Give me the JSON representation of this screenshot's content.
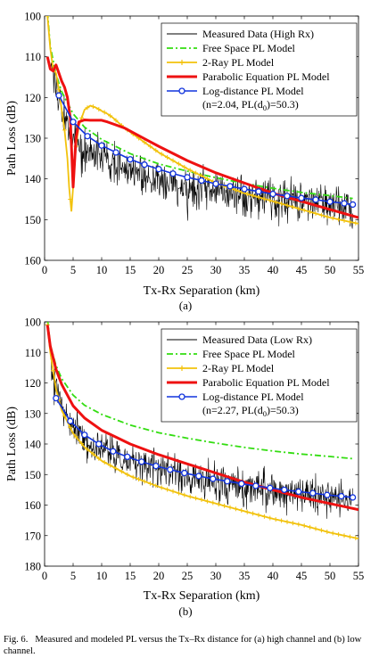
{
  "figure": {
    "caption_label": "Fig. 6.",
    "caption_text": "Measured and modeled PL versus the Tx–Rx distance for (a) high channel and (b) low channel."
  },
  "chart_data": [
    {
      "type": "line",
      "panel_label": "(a)",
      "xlabel": "Tx-Rx Separation (km)",
      "ylabel": "Path Loss (dB)",
      "xlim": [
        0,
        55
      ],
      "ylim": [
        160,
        100
      ],
      "y_reversed": true,
      "xticks": [
        0,
        5,
        10,
        15,
        20,
        25,
        30,
        35,
        40,
        45,
        50,
        55
      ],
      "yticks": [
        100,
        110,
        120,
        130,
        140,
        150,
        160
      ],
      "grid": false,
      "legend_position": "top-right",
      "series": [
        {
          "name": "Measured Data (High Rx)",
          "style": "thin-noisy",
          "color": "#000000",
          "x": [
            1,
            2,
            3,
            4,
            5,
            6,
            8,
            10,
            12,
            15,
            18,
            20,
            22,
            25,
            28,
            30,
            32,
            35,
            38,
            40,
            42,
            45,
            48,
            50,
            52,
            54
          ],
          "y": [
            112,
            118,
            124,
            127,
            129,
            131,
            133,
            134,
            136,
            138,
            139,
            140,
            141,
            142,
            142.5,
            143,
            143.5,
            144,
            144.5,
            145,
            145,
            145.5,
            146,
            146.5,
            147,
            147.5
          ],
          "spread": 9
        },
        {
          "name": "Free Space PL Model",
          "style": "dash-dot",
          "color": "#33dd11",
          "x": [
            0.5,
            1,
            2,
            3,
            5,
            7,
            10,
            15,
            20,
            25,
            30,
            35,
            40,
            45,
            50,
            54
          ],
          "y": [
            99,
            107.5,
            114.3,
            118.6,
            124,
            127.3,
            130.3,
            133.8,
            136.3,
            138.1,
            139.7,
            141.1,
            142.3,
            143.3,
            144.1,
            144.8
          ]
        },
        {
          "name": "2-Ray PL Model",
          "style": "line-plus",
          "color": "#f2c20c",
          "x": [
            0.5,
            1,
            1.5,
            2,
            2.5,
            3,
            3.5,
            4,
            4.3,
            4.7,
            5,
            5.5,
            6,
            7,
            8,
            9,
            10,
            11,
            12,
            14,
            16,
            18,
            20,
            25,
            30,
            35,
            40,
            45,
            50,
            55
          ],
          "y": [
            100,
            108,
            113,
            114,
            118,
            123,
            128,
            135,
            142,
            148,
            142,
            132,
            127,
            123,
            122,
            122.5,
            123.3,
            124,
            125,
            127.5,
            129.5,
            131.5,
            133.5,
            137.5,
            141,
            143.5,
            145.5,
            147.5,
            149.5,
            151
          ]
        },
        {
          "name": "Parabolic Equation PL Model",
          "style": "thick",
          "color": "#ee1111",
          "x": [
            0.5,
            1,
            1.5,
            2,
            2.5,
            3,
            3.5,
            4,
            4.5,
            5,
            5.5,
            6,
            7,
            8,
            9,
            10,
            11,
            12,
            14,
            16,
            18,
            20,
            25,
            30,
            35,
            40,
            45,
            50,
            55
          ],
          "y": [
            110,
            113,
            113.5,
            112,
            114,
            116,
            117.5,
            120,
            125,
            142,
            130,
            126,
            125.5,
            125.6,
            125.6,
            125.6,
            126,
            126.5,
            127.5,
            129,
            130.5,
            132,
            135.5,
            138.5,
            141,
            143.5,
            145.5,
            147.5,
            149.5
          ]
        },
        {
          "name": "Log-distance PL Model",
          "name_line2_prefix": "(n=2.04, PL(d",
          "name_line2_sub": "0",
          "name_line2_suffix": ")=50.3)",
          "style": "line-circle",
          "color": "#1133dd",
          "x": [
            2.5,
            5,
            7.5,
            10,
            12.5,
            15,
            17.5,
            20,
            22.5,
            25,
            27.5,
            30,
            32.5,
            35,
            37.5,
            40,
            42.5,
            45,
            47.5,
            50,
            52.5,
            54
          ],
          "y": [
            119.5,
            126,
            129.5,
            131.8,
            133.5,
            135.2,
            136.5,
            137.6,
            138.7,
            139.6,
            140.4,
            141.2,
            141.8,
            142.5,
            143.1,
            143.7,
            144.2,
            144.7,
            145.1,
            145.6,
            146,
            146.3
          ]
        }
      ]
    },
    {
      "type": "line",
      "panel_label": "(b)",
      "xlabel": "Tx-Rx Separation (km)",
      "ylabel": "Path Loss (dB)",
      "xlim": [
        0,
        55
      ],
      "ylim": [
        180,
        100
      ],
      "y_reversed": true,
      "xticks": [
        0,
        5,
        10,
        15,
        20,
        25,
        30,
        35,
        40,
        45,
        50,
        55
      ],
      "yticks": [
        100,
        110,
        120,
        130,
        140,
        150,
        160,
        170,
        180
      ],
      "grid": false,
      "legend_position": "top-right",
      "series": [
        {
          "name": "Measured Data (Low Rx)",
          "style": "thin-noisy",
          "color": "#000000",
          "x": [
            1,
            2,
            3,
            4,
            5,
            6,
            8,
            10,
            12,
            15,
            18,
            20,
            22,
            25,
            28,
            30,
            32,
            35,
            38,
            40,
            42,
            45,
            48,
            50,
            52,
            54
          ],
          "y": [
            113,
            122,
            128,
            132,
            134.5,
            136.5,
            139.5,
            141.5,
            143.5,
            145.5,
            147,
            148.5,
            149.5,
            151,
            152,
            152.5,
            153,
            154,
            154.5,
            155,
            155.5,
            156,
            156.5,
            157,
            157.5,
            158
          ],
          "spread": 11
        },
        {
          "name": "Free Space PL Model",
          "style": "dash-dot",
          "color": "#33dd11",
          "x": [
            0.5,
            1,
            2,
            3,
            5,
            7,
            10,
            15,
            20,
            25,
            30,
            35,
            40,
            45,
            50,
            54
          ],
          "y": [
            99,
            107.5,
            114.3,
            118.6,
            124,
            127.3,
            130.3,
            133.8,
            136.3,
            138.1,
            139.7,
            141.1,
            142.3,
            143.3,
            144.1,
            144.8
          ]
        },
        {
          "name": "2-Ray PL Model",
          "style": "line-plus",
          "color": "#f2c20c",
          "x": [
            0.5,
            1,
            2,
            3,
            5,
            7,
            10,
            15,
            20,
            25,
            30,
            35,
            40,
            45,
            50,
            55
          ],
          "y": [
            101,
            110,
            122,
            129,
            136.5,
            141,
            145.5,
            150.5,
            154,
            157,
            159.5,
            162,
            164.5,
            166.5,
            169,
            171
          ]
        },
        {
          "name": "Parabolic Equation PL Model",
          "style": "thick",
          "color": "#ee1111",
          "x": [
            0.5,
            1,
            2,
            3,
            5,
            7,
            10,
            15,
            20,
            25,
            30,
            35,
            40,
            45,
            50,
            55
          ],
          "y": [
            101,
            108,
            115.5,
            120.5,
            127.5,
            131.5,
            135.5,
            140,
            143.5,
            146.5,
            149.5,
            152.5,
            155,
            157.5,
            159.5,
            161.5
          ]
        },
        {
          "name": "Log-distance PL Model",
          "name_line2_prefix": "(n=2.27, PL(d",
          "name_line2_sub": "0",
          "name_line2_suffix": ")=50.3)",
          "style": "line-circle",
          "color": "#1133dd",
          "x": [
            2,
            4.5,
            7,
            9.5,
            12,
            14.5,
            17,
            19.5,
            22,
            24.5,
            27,
            29.5,
            32,
            34.5,
            37,
            39.5,
            42,
            44.5,
            47,
            49.5,
            52,
            54
          ],
          "y": [
            125,
            132.5,
            137,
            140,
            142.4,
            144.2,
            145.8,
            147.2,
            148.4,
            149.5,
            150.5,
            151.4,
            152.2,
            153,
            153.7,
            154.4,
            155,
            155.6,
            156.1,
            156.7,
            157.1,
            157.5
          ]
        }
      ]
    }
  ]
}
